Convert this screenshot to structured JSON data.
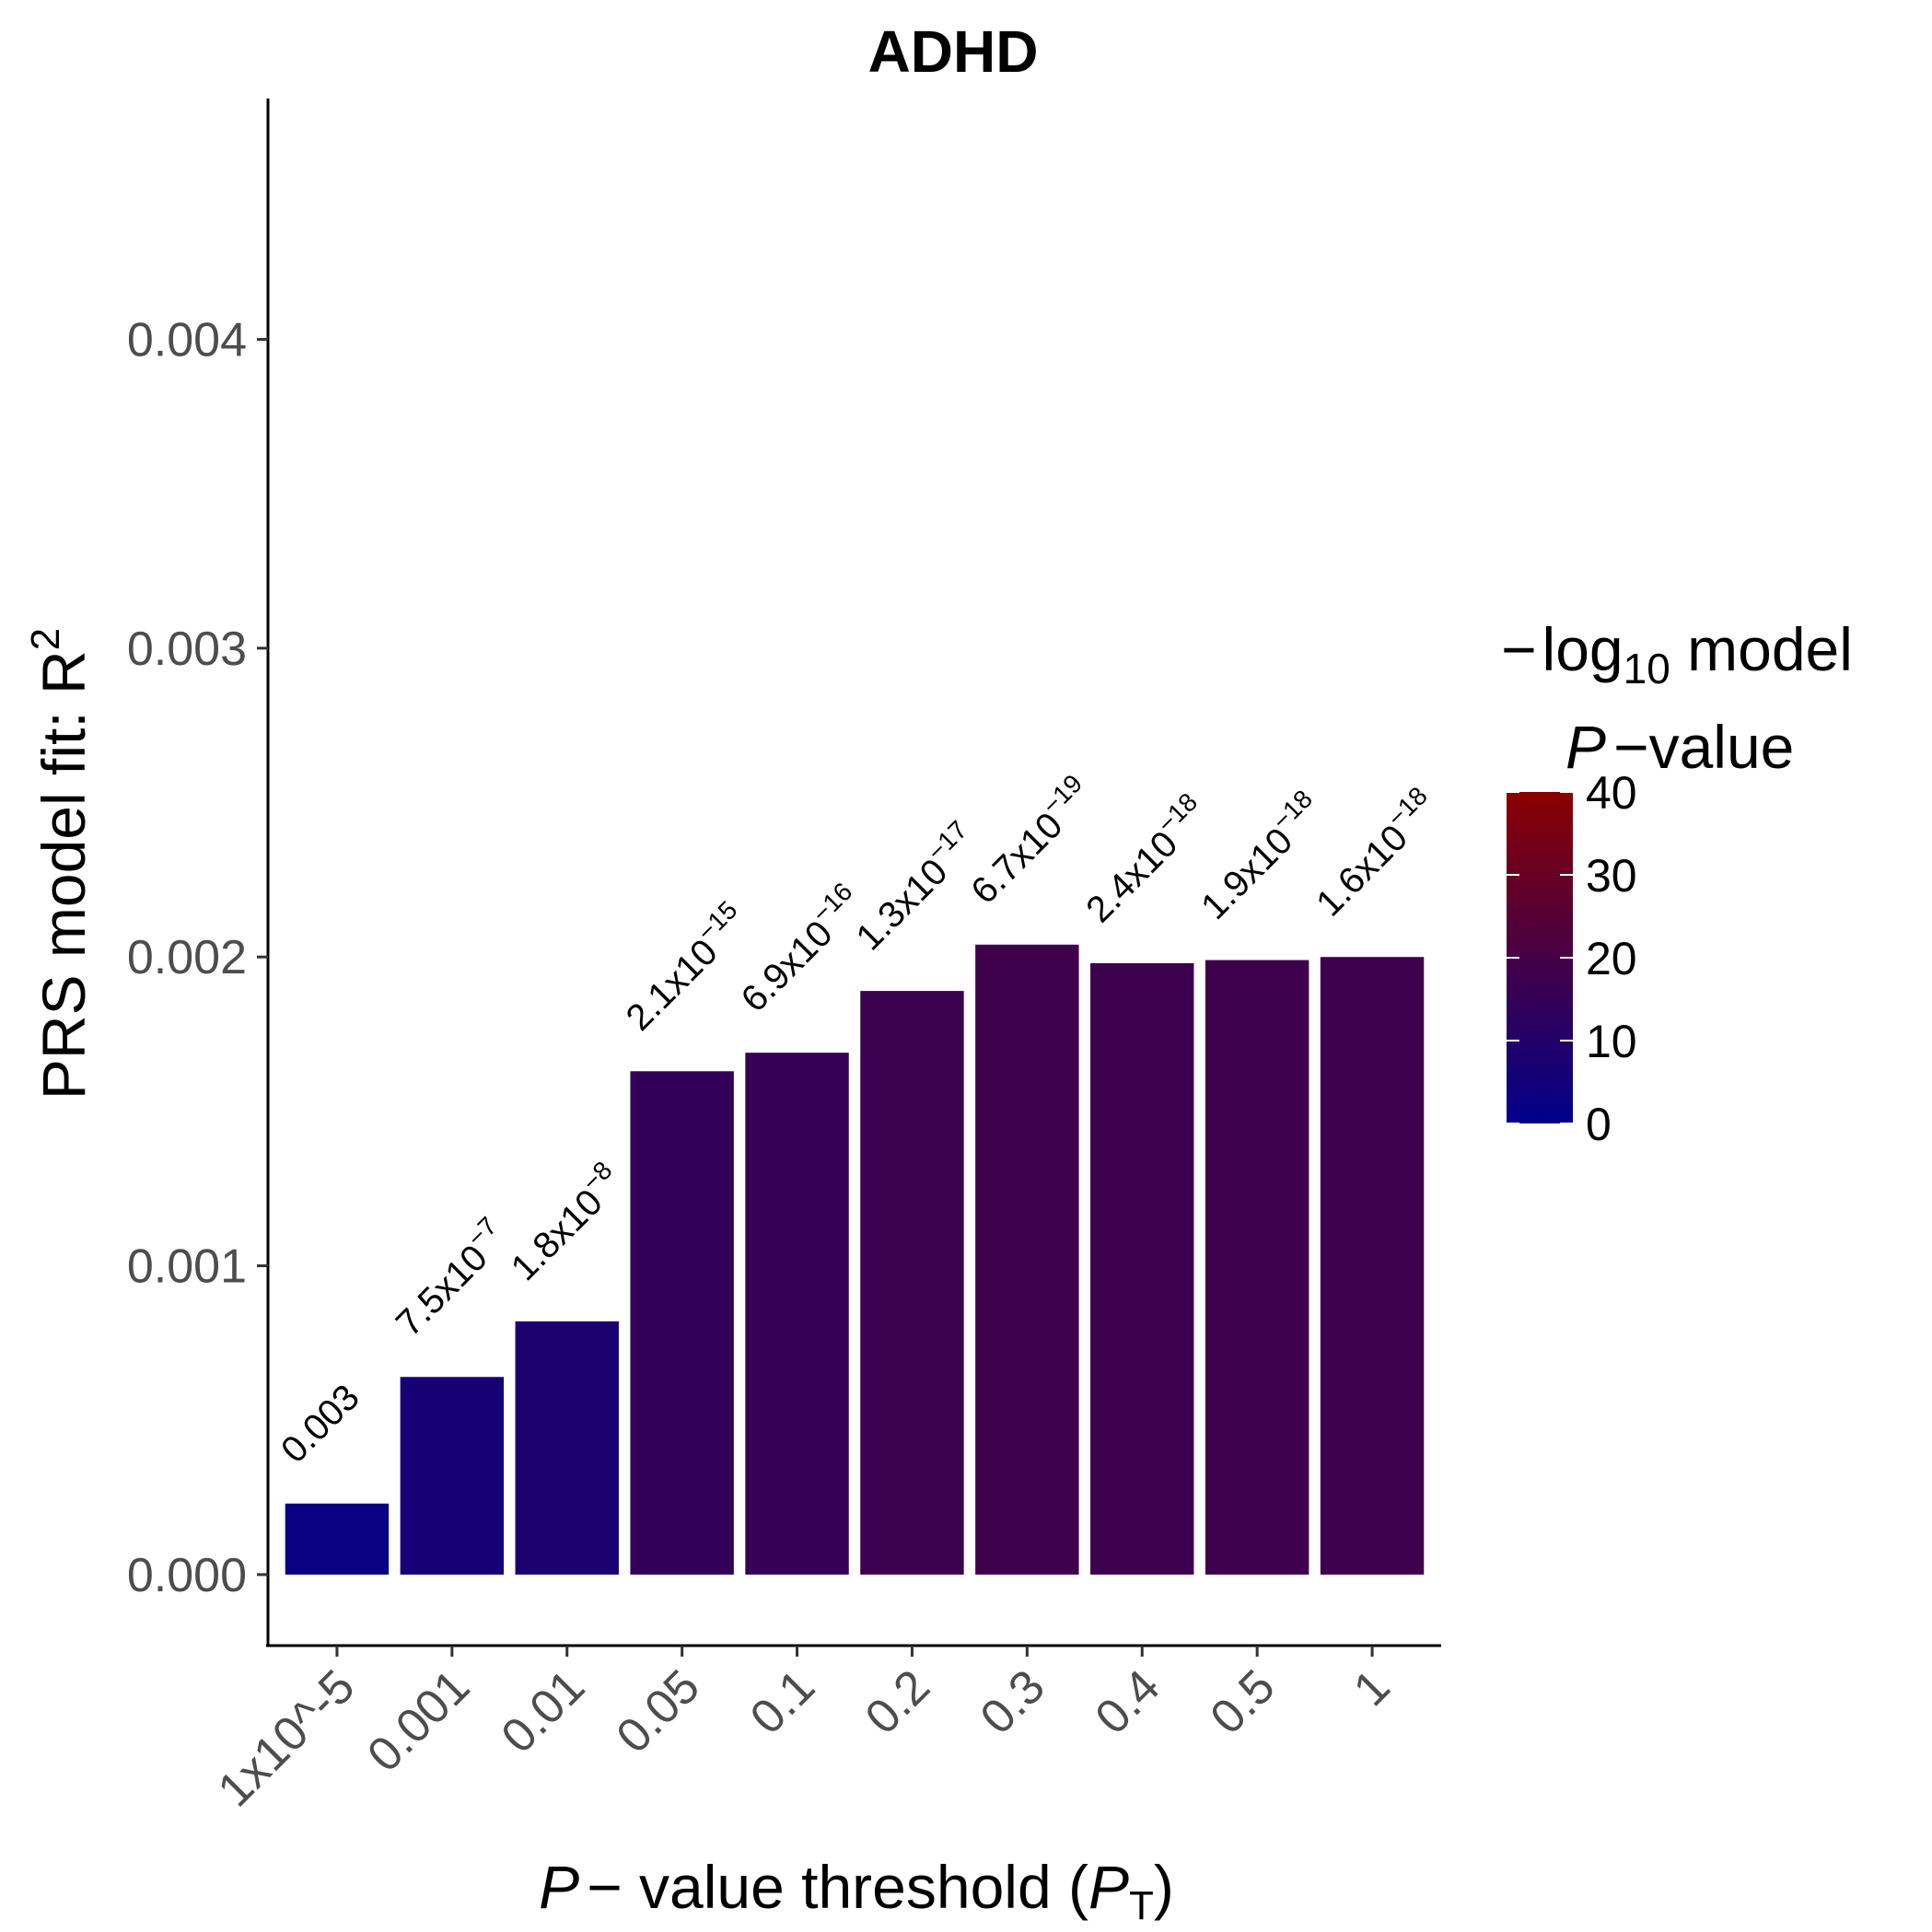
{
  "chart_data": {
    "type": "bar",
    "title": "ADHD",
    "categories": [
      "1x10^-5",
      "0.001",
      "0.01",
      "0.05",
      "0.1",
      "0.2",
      "0.3",
      "0.4",
      "0.5",
      "1"
    ],
    "values": [
      0.00023,
      0.00064,
      0.00082,
      0.00163,
      0.00169,
      0.00189,
      0.00204,
      0.00198,
      0.00199,
      0.002
    ],
    "neg_log10_p": [
      2.52,
      6.12,
      7.74,
      14.68,
      15.16,
      16.89,
      18.17,
      17.62,
      17.72,
      17.8
    ],
    "p_value_labels": [
      {
        "mantissa": "0.003",
        "exponent": ""
      },
      {
        "mantissa": "7.5x10",
        "exponent": "−7"
      },
      {
        "mantissa": "1.8x10",
        "exponent": "−8"
      },
      {
        "mantissa": "2.1x10",
        "exponent": "−15"
      },
      {
        "mantissa": "6.9x10",
        "exponent": "−16"
      },
      {
        "mantissa": "1.3x10",
        "exponent": "−17"
      },
      {
        "mantissa": "6.7x10",
        "exponent": "−19"
      },
      {
        "mantissa": "2.4x10",
        "exponent": "−18"
      },
      {
        "mantissa": "1.9x10",
        "exponent": "−18"
      },
      {
        "mantissa": "1.6x10",
        "exponent": "−18"
      }
    ],
    "ylim": [
      -0.00023,
      0.00478
    ],
    "y_ticks": [
      0,
      0.001,
      0.002,
      0.003,
      0.004
    ],
    "y_tick_labels": [
      "0.000",
      "0.001",
      "0.002",
      "0.003",
      "0.004"
    ],
    "xlabel": {
      "italic": "P",
      "minus": "−",
      "text": " value threshold (",
      "subscript_base": "P",
      "subscript": "T",
      "close": ")"
    },
    "ylabel": {
      "text": "PRS model fit:  R",
      "superscript": "2"
    },
    "legend": {
      "title_line1_minus": "−",
      "title_line1_log": "log",
      "title_line1_sub": "10",
      "title_line1_rest": " model",
      "title_line2_italic": "P",
      "title_line2_minus": "−",
      "title_line2_rest": "value",
      "ticks": [
        0,
        10,
        20,
        30,
        40
      ],
      "tick_labels": [
        "0",
        "10",
        "20",
        "30",
        "40"
      ],
      "range": [
        0,
        40
      ],
      "low_color": "#00008b",
      "high_color": "#8b0000",
      "placement": "right"
    },
    "grid": false
  }
}
